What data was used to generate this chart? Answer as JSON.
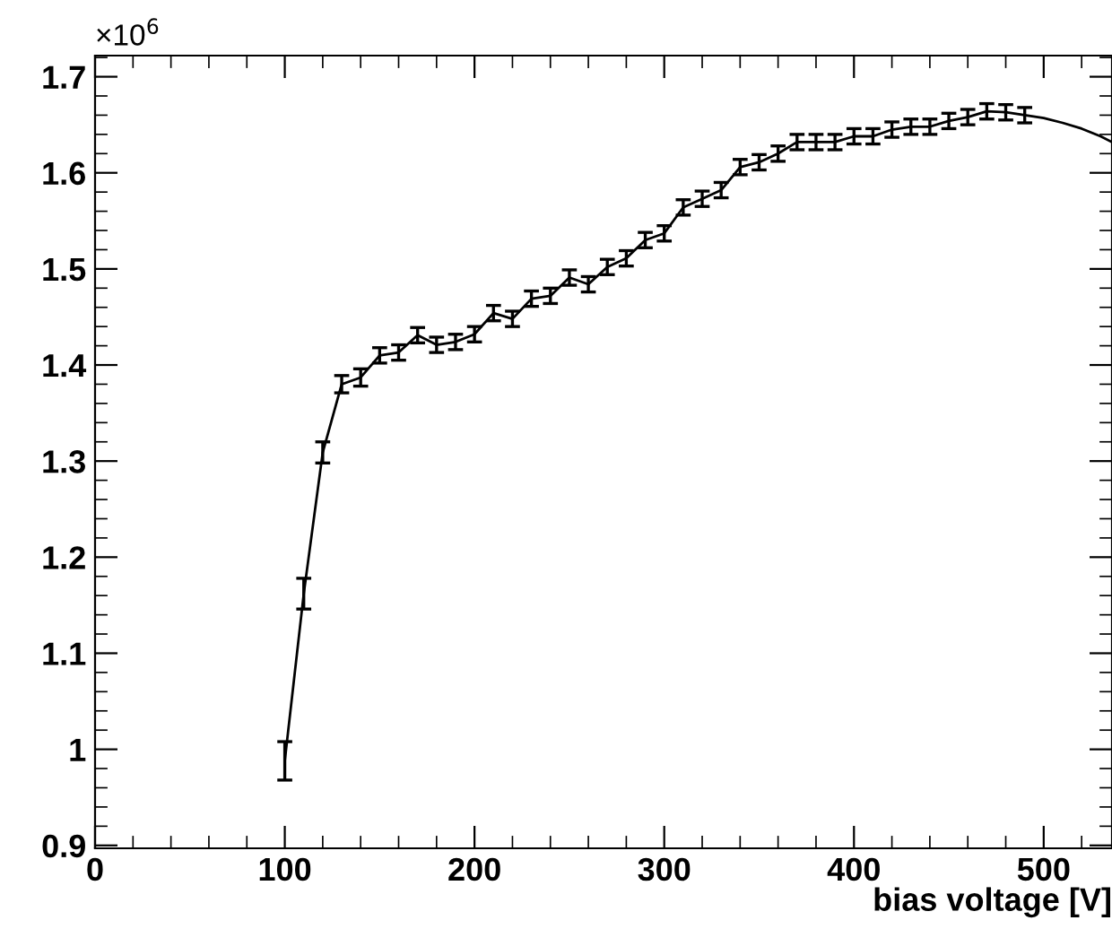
{
  "chart_data": {
    "type": "line",
    "xlabel": "bias voltage [V]",
    "annotations": [
      "×10$^{6}$"
    ],
    "xlim": [
      0,
      536
    ],
    "ylim": [
      0.897,
      1.722
    ],
    "xticks": [
      0,
      100,
      200,
      300,
      400,
      500
    ],
    "yticks": [
      {
        "value": 0.9,
        "label": "0.9"
      },
      {
        "value": 1.0,
        "label": "1"
      },
      1.1,
      1.2,
      1.3,
      1.4,
      1.5,
      1.6,
      1.7
    ],
    "grid": false,
    "legend": false,
    "marker": "none",
    "line_style": "solid",
    "series": [
      {
        "color": "#000000",
        "x": [
          100,
          110,
          120,
          130,
          140,
          150,
          160,
          170,
          180,
          190,
          200,
          210,
          220,
          230,
          240,
          250,
          260,
          270,
          280,
          290,
          300,
          310,
          320,
          330,
          340,
          350,
          360,
          370,
          380,
          390,
          400,
          410,
          420,
          430,
          440,
          450,
          460,
          470,
          480,
          490,
          500,
          510,
          520,
          530,
          536
        ],
        "values": [
          0.988,
          1.162,
          1.309,
          1.38,
          1.387,
          1.41,
          1.413,
          1.431,
          1.421,
          1.424,
          1.432,
          1.454,
          1.448,
          1.469,
          1.472,
          1.491,
          1.484,
          1.502,
          1.511,
          1.53,
          1.537,
          1.564,
          1.573,
          1.582,
          1.606,
          1.611,
          1.62,
          1.632,
          1.632,
          1.632,
          1.638,
          1.638,
          1.645,
          1.648,
          1.648,
          1.654,
          1.658,
          1.664,
          1.663,
          1.66,
          1.657,
          1.652,
          1.646,
          1.638,
          1.632
        ],
        "errors": [
          0.02,
          0.016,
          0.011,
          0.009,
          0.009,
          0.008,
          0.008,
          0.008,
          0.008,
          0.008,
          0.008,
          0.008,
          0.008,
          0.008,
          0.008,
          0.008,
          0.008,
          0.008,
          0.008,
          0.008,
          0.008,
          0.008,
          0.008,
          0.008,
          0.008,
          0.008,
          0.008,
          0.008,
          0.008,
          0.008,
          0.008,
          0.008,
          0.008,
          0.008,
          0.008,
          0.008,
          0.008,
          0.008,
          0.008,
          0.008,
          null,
          null,
          null,
          null,
          null
        ]
      }
    ]
  }
}
